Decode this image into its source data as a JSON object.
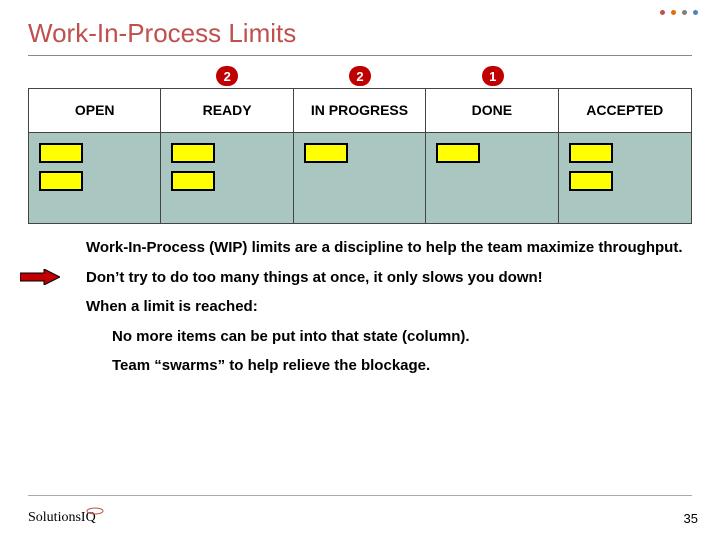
{
  "colors": {
    "title": "#c0504d",
    "dot_colors": [
      "#c0504d",
      "#e46c0a",
      "#808080",
      "#4f81bd"
    ],
    "badge_bg": "#c00000",
    "col_body_bg": "#a9c6c0",
    "card_fill": "#ffff00",
    "arrow_fill": "#c00000",
    "logo_accent": "#c0504d"
  },
  "title": "Work-In-Process Limits",
  "board": {
    "columns": [
      {
        "name": "OPEN",
        "wip_limit": null,
        "cards": 2
      },
      {
        "name": "READY",
        "wip_limit": "2",
        "cards": 2
      },
      {
        "name": "IN PROGRESS",
        "wip_limit": "2",
        "cards": 1
      },
      {
        "name": "DONE",
        "wip_limit": "1",
        "cards": 1
      },
      {
        "name": "ACCEPTED",
        "wip_limit": null,
        "cards": 2
      }
    ]
  },
  "notes": {
    "p1": "Work-In-Process (WIP) limits are a discipline to help the team maximize throughput.",
    "p2": "Don’t try to do too many things at once, it only slows you down!",
    "p3": "When a limit is reached:",
    "p3a": "No more items can be put into that state (column).",
    "p3b": "Team “swarms” to help relieve the blockage."
  },
  "arrow_points_to": "p2",
  "logo": {
    "part1": "Solutions",
    "part2": "IQ"
  },
  "page_number": "35"
}
